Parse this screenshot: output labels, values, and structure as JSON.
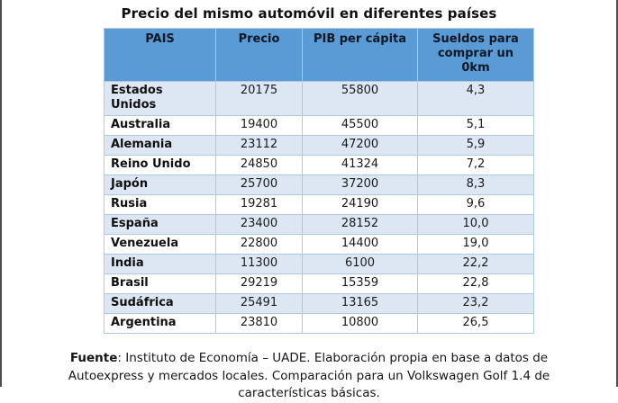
{
  "page": {
    "title": "Precio del mismo automóvil en diferentes países"
  },
  "table": {
    "headers": [
      "PAIS",
      "Precio",
      "PIB per cápita",
      "Sueldos para comprar un 0km"
    ],
    "rows": [
      {
        "pais": "Estados Unidos",
        "precio": "20175",
        "pib": "55800",
        "sueldos": "4,3"
      },
      {
        "pais": "Australia",
        "precio": "19400",
        "pib": "45500",
        "sueldos": "5,1"
      },
      {
        "pais": "Alemania",
        "precio": "23112",
        "pib": "47200",
        "sueldos": "5,9"
      },
      {
        "pais": "Reino Unido",
        "precio": "24850",
        "pib": "41324",
        "sueldos": "7,2"
      },
      {
        "pais": "Japón",
        "precio": "25700",
        "pib": "37200",
        "sueldos": "8,3"
      },
      {
        "pais": "Rusia",
        "precio": "19281",
        "pib": "24190",
        "sueldos": "9,6"
      },
      {
        "pais": "España",
        "precio": "23400",
        "pib": "28152",
        "sueldos": "10,0"
      },
      {
        "pais": "Venezuela",
        "precio": "22800",
        "pib": "14400",
        "sueldos": "19,0"
      },
      {
        "pais": "India",
        "precio": "11300",
        "pib": "6100",
        "sueldos": "22,2"
      },
      {
        "pais": "Brasil",
        "precio": "29219",
        "pib": "15359",
        "sueldos": "22,8"
      },
      {
        "pais": "Sudáfrica",
        "precio": "25491",
        "pib": "13165",
        "sueldos": "23,2"
      },
      {
        "pais": "Argentina",
        "precio": "23810",
        "pib": "10800",
        "sueldos": "26,5"
      }
    ]
  },
  "footer": {
    "label": "Fuente",
    "text": ": Instituto de Economía – UADE. Elaboración propia en base a datos de Autoexpress y mercados locales. Comparación para un Volkswagen Golf 1.4 de características básicas."
  },
  "colors": {
    "header_bg": "#5B9BD5",
    "band_row_bg": "#DDE7F4",
    "plain_row_bg": "#FFFFFF",
    "table_border": "#AFC9E5",
    "frame_border": "#4D4D4D"
  }
}
